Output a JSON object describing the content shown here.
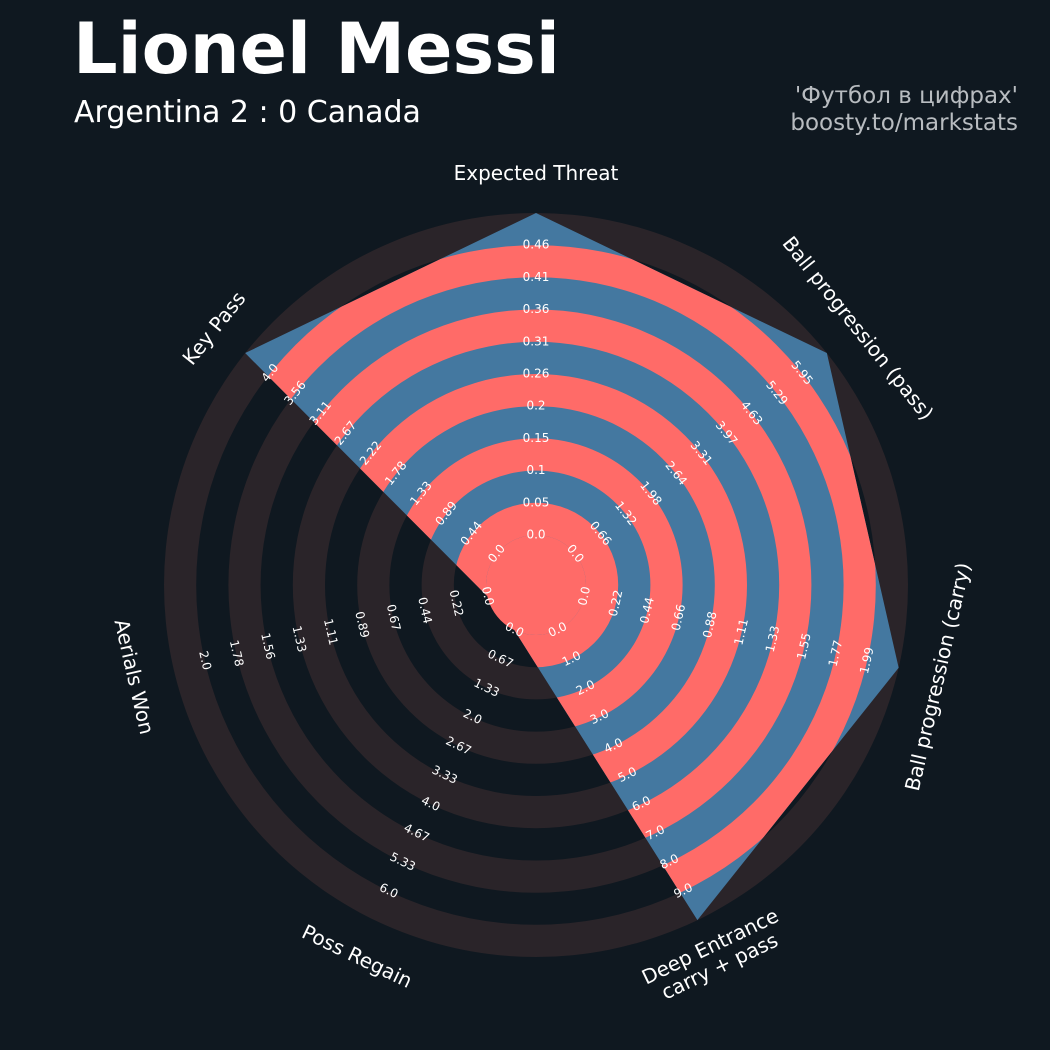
{
  "header": {
    "title": "Lionel Messi",
    "subtitle": "Argentina 2 : 0 Canada",
    "credit_line1": "'Футбол в цифрах'",
    "credit_line2": "boosty.to/markstats"
  },
  "colors": {
    "background": "#0f1820",
    "ring_dark": "#2a2429",
    "ring_highlight": "#ff6b68",
    "player_fill": "#4478a0",
    "text": "#ffffff",
    "credit_text": "#b8bcc0"
  },
  "chart_data": {
    "type": "radar",
    "title": "Lionel Messi",
    "subtitle": "Argentina 2 : 0 Canada",
    "rings": 10,
    "params": [
      {
        "label": "Expected Threat",
        "label_lines": [
          "Expected Threat"
        ],
        "min": 0.0,
        "max": 0.46,
        "value": 0.46,
        "ticks": [
          "0.0",
          "0.05",
          "0.1",
          "0.15",
          "0.2",
          "0.26",
          "0.31",
          "0.36",
          "0.41",
          "0.46"
        ]
      },
      {
        "label": "Ball progression (pass)",
        "label_lines": [
          "Ball progression (pass)"
        ],
        "min": 0.0,
        "max": 5.95,
        "value": 5.95,
        "ticks": [
          "0.0",
          "0.66",
          "1.32",
          "1.98",
          "2.64",
          "3.31",
          "3.97",
          "4.63",
          "5.29",
          "5.95"
        ]
      },
      {
        "label": "Ball progression (carry)",
        "label_lines": [
          "Ball progression (carry)"
        ],
        "min": 0.0,
        "max": 1.99,
        "value": 1.99,
        "ticks": [
          "0.0",
          "0.22",
          "0.44",
          "0.66",
          "0.88",
          "1.11",
          "1.33",
          "1.55",
          "1.77",
          "1.99"
        ]
      },
      {
        "label": "Deep Entrance carry + pass",
        "label_lines": [
          "Deep Entrance",
          "carry + pass"
        ],
        "min": 0.0,
        "max": 9.0,
        "value": 9.0,
        "ticks": [
          "0.0",
          "1.0",
          "2.0",
          "3.0",
          "4.0",
          "5.0",
          "6.0",
          "7.0",
          "8.0",
          "9.0"
        ]
      },
      {
        "label": "Poss Regain",
        "label_lines": [
          "Poss Regain"
        ],
        "min": 0.0,
        "max": 6.0,
        "value": 0.0,
        "ticks": [
          "0.0",
          "0.67",
          "1.33",
          "2.0",
          "2.67",
          "3.33",
          "4.0",
          "4.67",
          "5.33",
          "6.0"
        ]
      },
      {
        "label": "Aerials Won",
        "label_lines": [
          "Aerials Won"
        ],
        "min": 0.0,
        "max": 2.0,
        "value": 0.0,
        "ticks": [
          "0.0",
          "0.22",
          "0.44",
          "0.67",
          "0.89",
          "1.11",
          "1.33",
          "1.56",
          "1.78",
          "2.0"
        ]
      },
      {
        "label": "Key Pass",
        "label_lines": [
          "Key Pass"
        ],
        "min": 0.0,
        "max": 4.0,
        "value": 4.0,
        "ticks": [
          "0.0",
          "0.44",
          "0.89",
          "1.33",
          "1.78",
          "2.22",
          "2.67",
          "3.11",
          "3.56",
          "4.0"
        ]
      }
    ]
  }
}
